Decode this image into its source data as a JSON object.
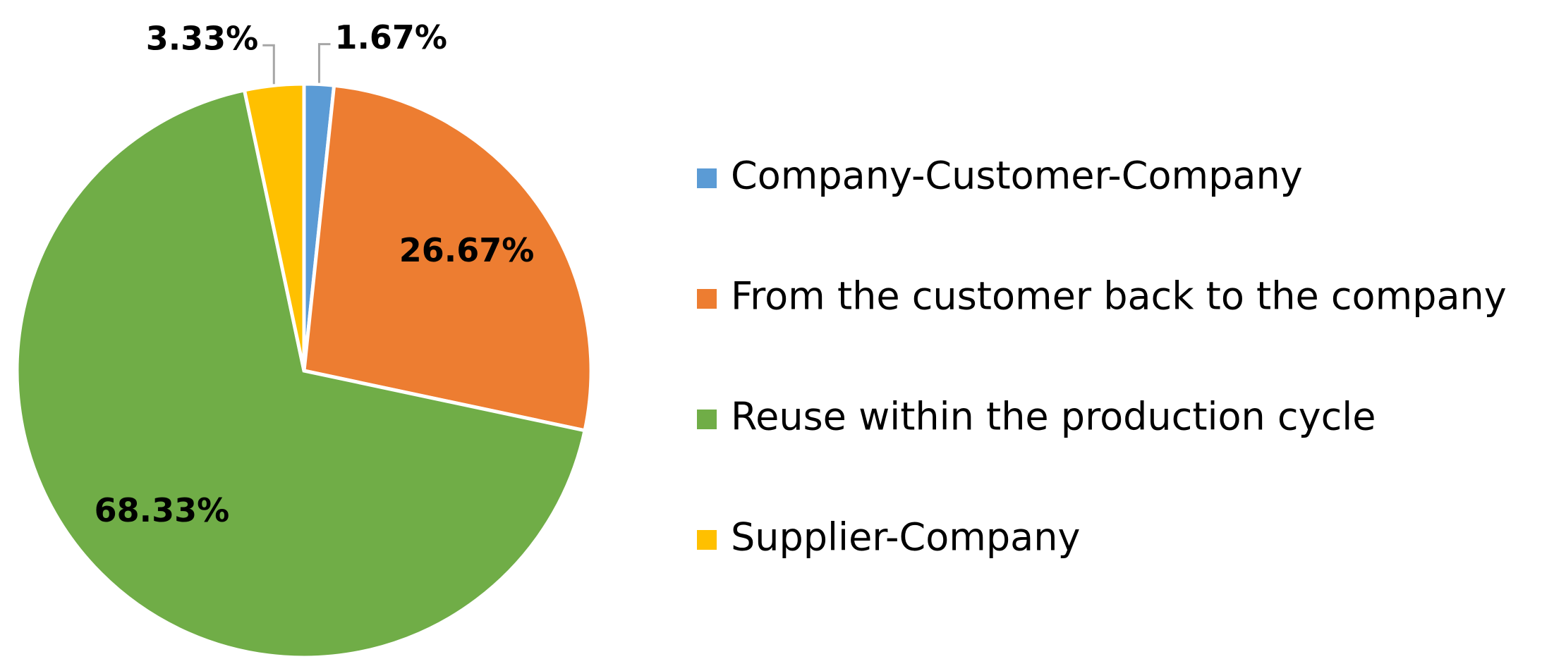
{
  "chart_data": {
    "type": "pie",
    "categories": [
      "Company-Customer-Company",
      "From the customer back to the company",
      "Reuse within the production cycle",
      "Supplier-Company"
    ],
    "values": [
      1.67,
      26.67,
      68.33,
      3.33
    ],
    "value_labels": [
      "1.67%",
      "26.67%",
      "68.33%",
      "3.33%"
    ],
    "colors": [
      "#5b9bd5",
      "#ed7d31",
      "#70ad47",
      "#ffc000"
    ],
    "legend": "right"
  }
}
